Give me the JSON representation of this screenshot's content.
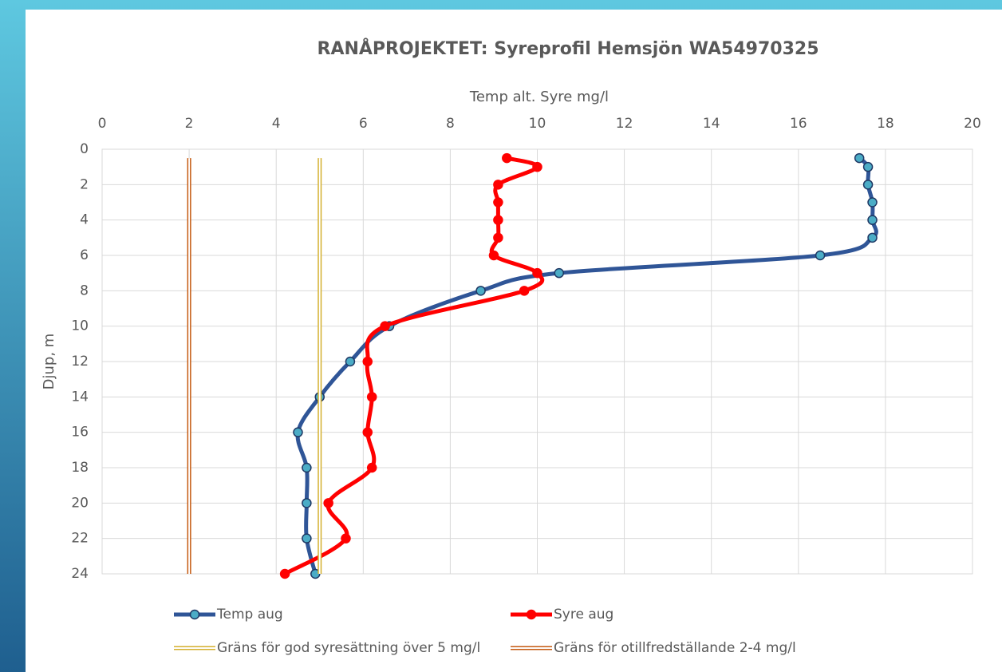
{
  "chart_data": {
    "type": "line",
    "title": "RANÅPROJEKTET: Syreprofil Hemsjön WA54970325",
    "xlabel": "Temp alt. Syre mg/l",
    "ylabel": "Djup, m",
    "xlim": [
      0,
      20
    ],
    "xticks": [
      0,
      2,
      4,
      6,
      8,
      10,
      12,
      14,
      16,
      18,
      20
    ],
    "ylim": [
      0,
      24
    ],
    "yticks": [
      0,
      2,
      4,
      6,
      8,
      10,
      12,
      14,
      16,
      18,
      20,
      22,
      24
    ],
    "y_inverted": true,
    "x_axis_position": "top",
    "grid": true,
    "legend": "bottom",
    "series": [
      {
        "name": "Temp aug",
        "color": "#2f5597",
        "marker_color": "#4bacc6",
        "style": "marker-line",
        "x": [
          17.4,
          17.6,
          17.6,
          17.7,
          17.7,
          17.7,
          16.5,
          10.5,
          8.7,
          6.6,
          5.7,
          5.0,
          4.5,
          4.7,
          4.7,
          4.7,
          4.9
        ],
        "y": [
          0.5,
          1,
          2,
          3,
          4,
          5,
          6,
          7,
          8,
          10,
          12,
          14,
          16,
          18,
          20,
          22,
          24
        ]
      },
      {
        "name": "Syre aug",
        "color": "#ff0000",
        "marker_color": "#ff0000",
        "style": "marker-line",
        "x": [
          9.3,
          10.0,
          9.1,
          9.1,
          9.1,
          9.1,
          9.0,
          10.0,
          9.7,
          6.5,
          6.1,
          6.2,
          6.1,
          6.2,
          5.2,
          5.6,
          4.2
        ],
        "y": [
          0.5,
          1,
          2,
          3,
          4,
          5,
          6,
          7,
          8,
          10,
          12,
          14,
          16,
          18,
          20,
          22,
          24
        ]
      },
      {
        "name": "Gräns för god syresättning över 5 mg/l",
        "color": "#d4b02f",
        "style": "outline",
        "x": [
          5,
          5
        ],
        "y": [
          0.5,
          24
        ]
      },
      {
        "name": "Gräns för otillfredställande 2-4 mg/l",
        "color": "#c55a11",
        "style": "outline",
        "x": [
          2,
          2
        ],
        "y": [
          0.5,
          24
        ]
      }
    ]
  }
}
